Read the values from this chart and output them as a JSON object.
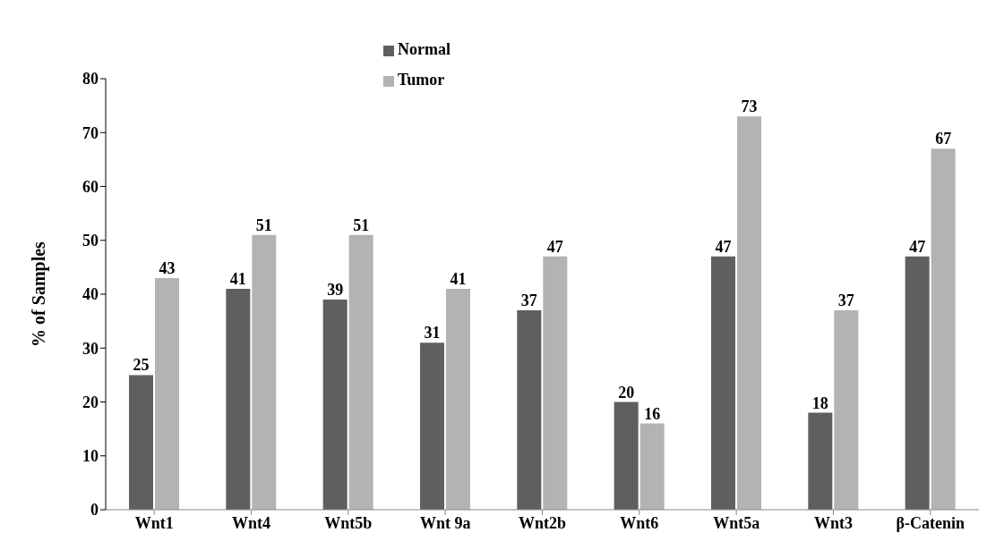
{
  "chart_data": {
    "type": "bar",
    "ylabel": "% of Samples",
    "categories": [
      "Wnt1",
      "Wnt4",
      "Wnt5b",
      "Wnt 9a",
      "Wnt2b",
      "Wnt6",
      "Wnt5a",
      "Wnt3",
      "β-Catenin"
    ],
    "series": [
      {
        "name": "Normal",
        "color": "#5f5f5f",
        "values": [
          25,
          41,
          39,
          31,
          37,
          20,
          47,
          18,
          47
        ]
      },
      {
        "name": "Tumor",
        "color": "#b3b3b3",
        "values": [
          43,
          51,
          51,
          41,
          47,
          16,
          73,
          37,
          67
        ]
      }
    ],
    "ylim": [
      0,
      80
    ],
    "yticks": [
      0,
      10,
      20,
      30,
      40,
      50,
      60,
      70,
      80
    ],
    "grid": false,
    "legend": "top",
    "data_labels": true
  }
}
